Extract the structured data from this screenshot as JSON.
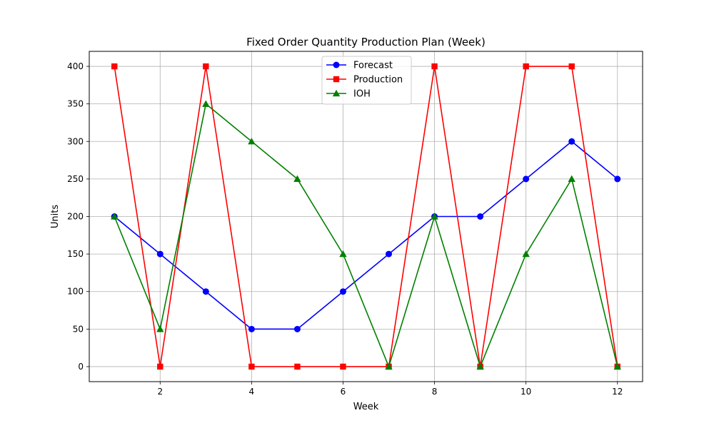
{
  "chart_data": {
    "type": "line",
    "title": "Fixed Order Quantity Production Plan (Week)",
    "xlabel": "Week",
    "ylabel": "Units",
    "xlim": [
      0.45,
      12.55
    ],
    "ylim": [
      -20,
      420
    ],
    "x_ticks": [
      2,
      4,
      6,
      8,
      10,
      12
    ],
    "y_ticks": [
      0,
      50,
      100,
      150,
      200,
      250,
      300,
      350,
      400
    ],
    "grid": true,
    "legend_position": "upper-center",
    "x": [
      1,
      2,
      3,
      4,
      5,
      6,
      7,
      8,
      9,
      10,
      11,
      12
    ],
    "series": [
      {
        "name": "Forecast",
        "color": "#0000ff",
        "marker": "circle",
        "values": [
          200,
          150,
          100,
          50,
          50,
          100,
          150,
          200,
          200,
          250,
          300,
          250
        ]
      },
      {
        "name": "Production",
        "color": "#ff0000",
        "marker": "square",
        "values": [
          400,
          0,
          400,
          0,
          0,
          0,
          0,
          400,
          0,
          400,
          400,
          0
        ]
      },
      {
        "name": "IOH",
        "color": "#008000",
        "marker": "triangle",
        "values": [
          200,
          50,
          350,
          300,
          250,
          150,
          0,
          200,
          0,
          150,
          250,
          0
        ]
      }
    ]
  }
}
